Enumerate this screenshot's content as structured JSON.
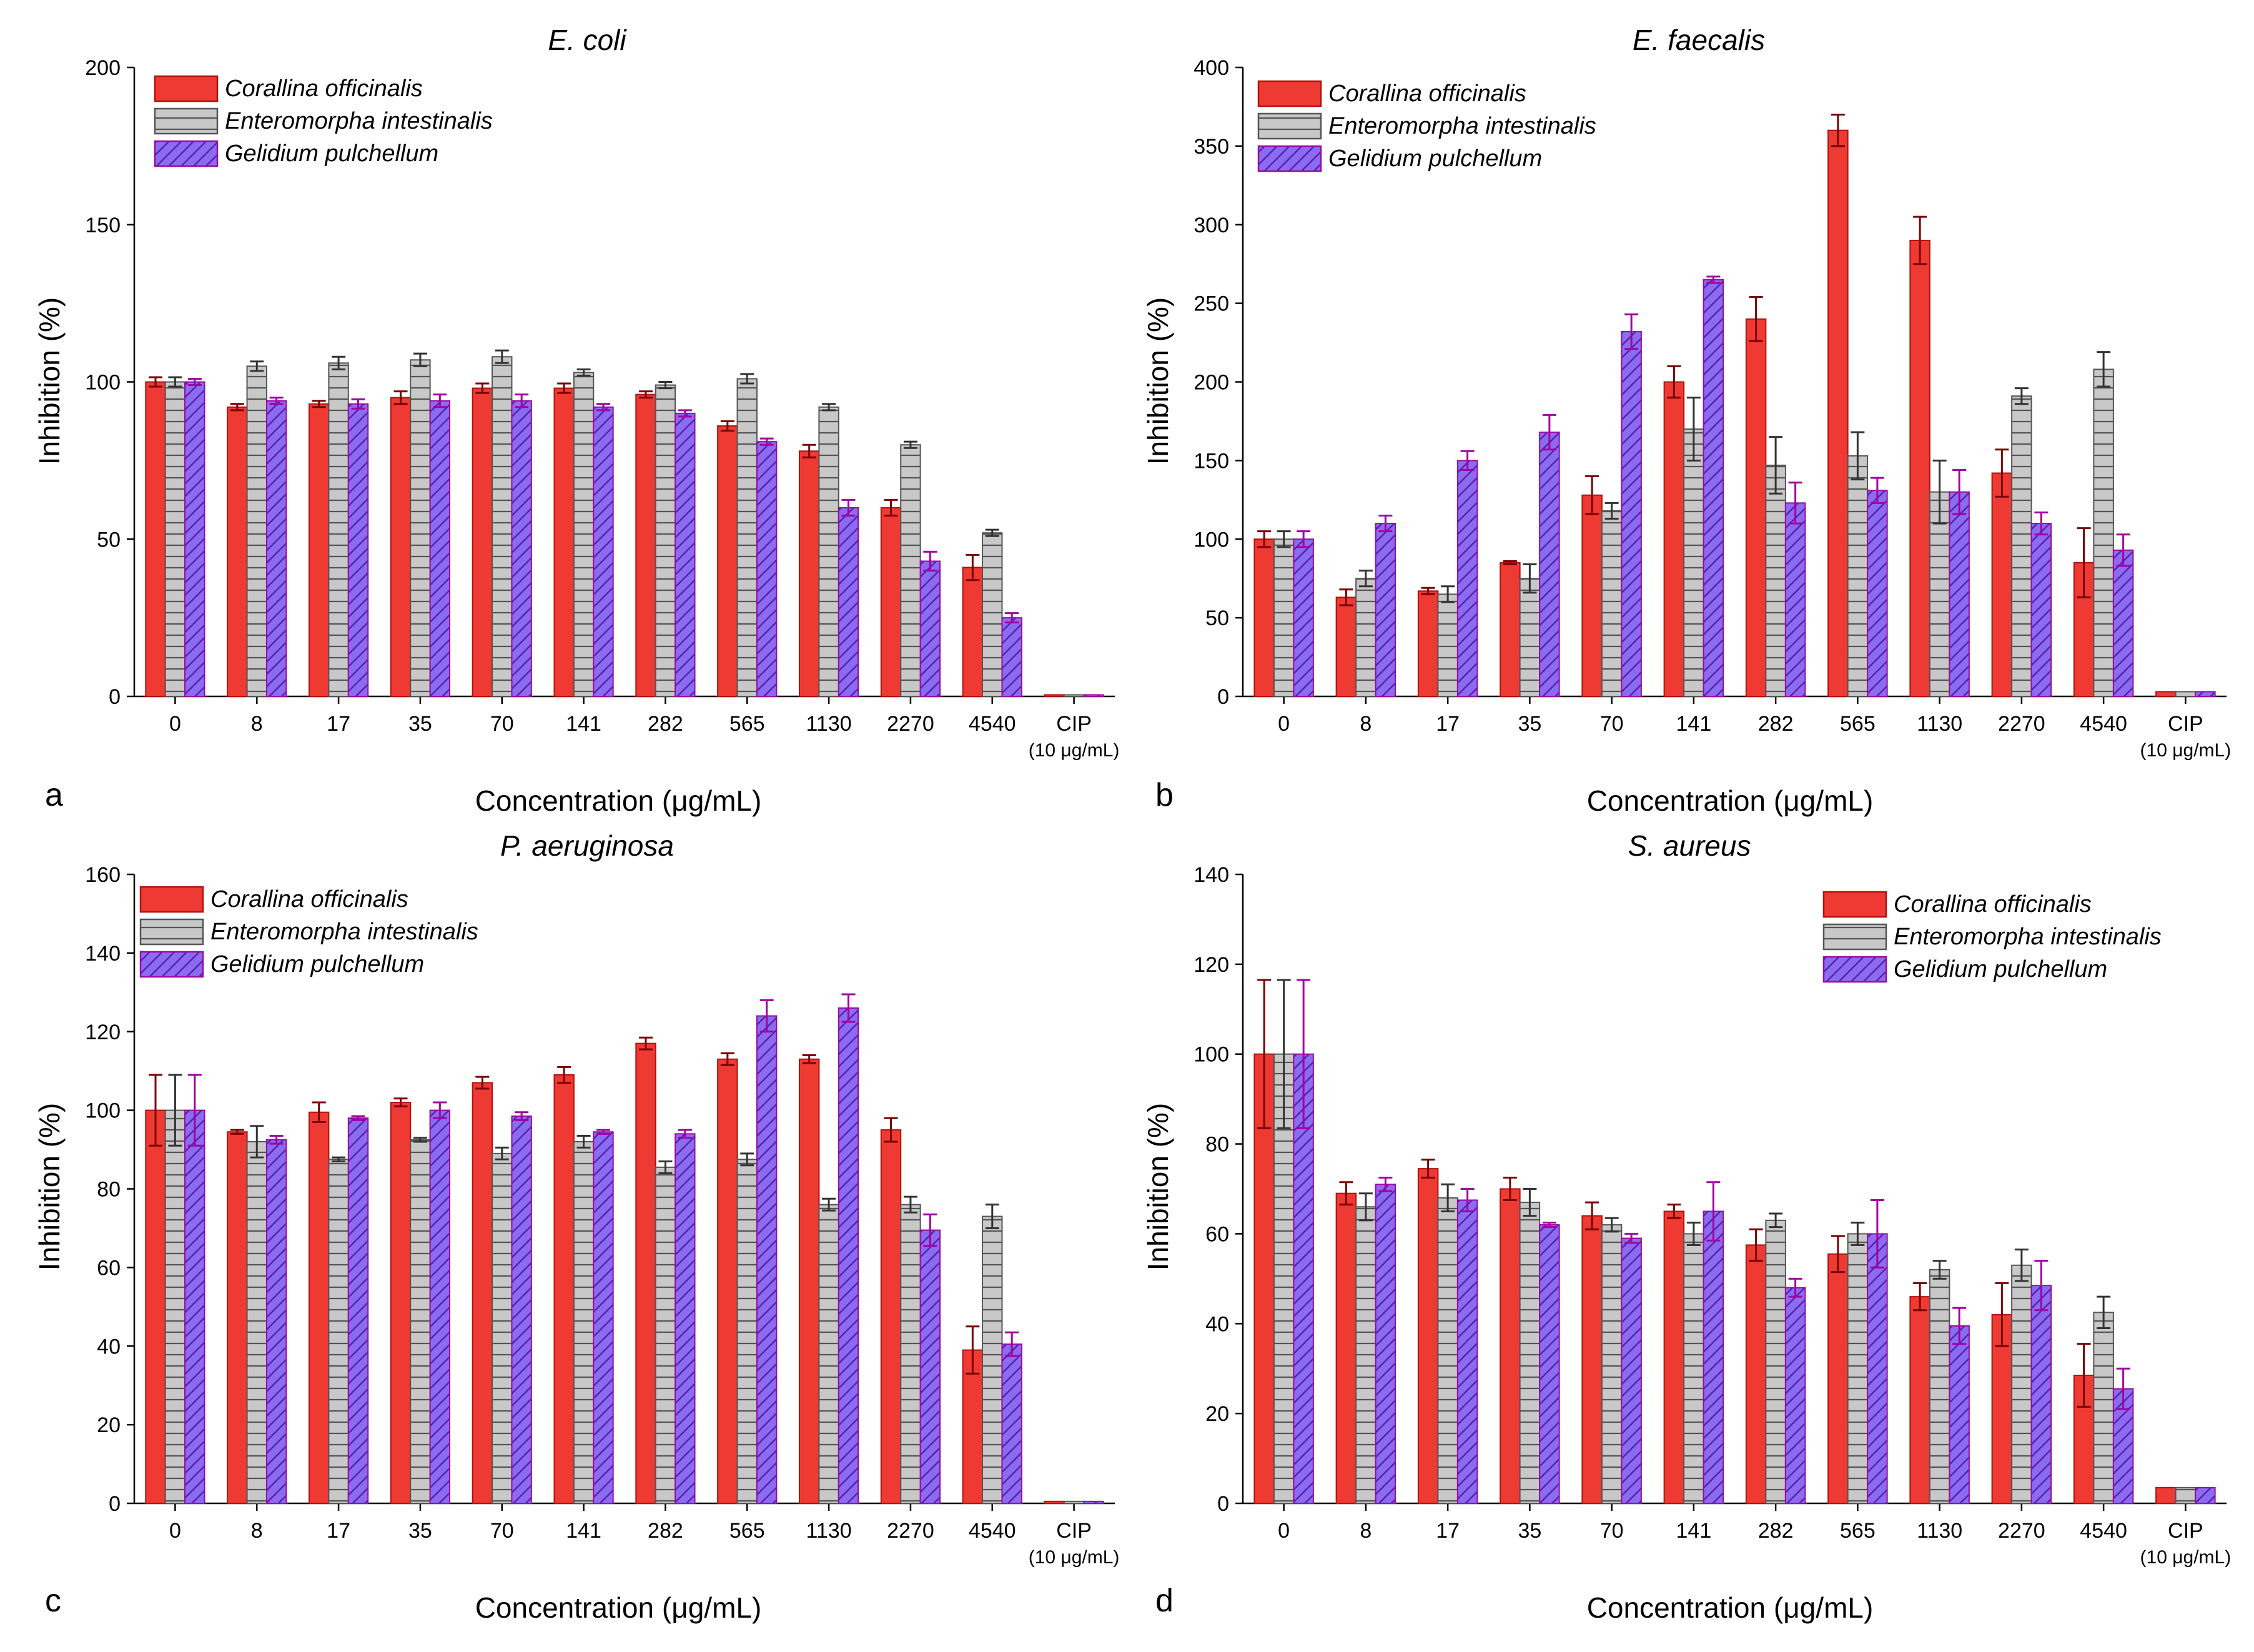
{
  "figure": {
    "panel_letters": [
      "a",
      "b",
      "c",
      "d"
    ]
  },
  "colors": {
    "series": [
      "#ee3a33",
      "#c8c8c8",
      "#8a6cf0"
    ],
    "series_stroke": [
      "#b0120d",
      "#555555",
      "#9a0aa0"
    ],
    "hatch_lines": [
      "#b0120d",
      "#555555",
      "#5a1fb0"
    ],
    "errorbars": [
      "#7a0000",
      "#333333",
      "#a000a0"
    ]
  },
  "chart_data": [
    {
      "type": "bar",
      "title": "E. coli",
      "xlabel": "Concentration (μg/mL)",
      "ylabel": "Inhibition (%)",
      "ylim": [
        0,
        200
      ],
      "yticks": [
        0,
        50,
        100,
        150,
        200
      ],
      "categories": [
        "0",
        "8",
        "17",
        "35",
        "70",
        "141",
        "282",
        "565",
        "1130",
        "2270",
        "4540",
        "CIP"
      ],
      "cip_note": "(10 μg/mL)",
      "legend_position": "top-left",
      "series": [
        {
          "name": "Corallina officinalis",
          "values": [
            100,
            92,
            93,
            95,
            98,
            98,
            96,
            86,
            78,
            60,
            41,
            0.5
          ],
          "errors": [
            1.5,
            1,
            1,
            2,
            1.5,
            1.5,
            1,
            1.5,
            2,
            2.5,
            4,
            0
          ]
        },
        {
          "name": "Enteromorpha intestinalis",
          "values": [
            100,
            105,
            106,
            107,
            108,
            103,
            99,
            101,
            92,
            80,
            52,
            0.5
          ],
          "errors": [
            1.5,
            1.5,
            2,
            2,
            2,
            1,
            1,
            1.5,
            1,
            1,
            1,
            0
          ]
        },
        {
          "name": "Gelidium pulchellum",
          "values": [
            100,
            94,
            93,
            94,
            94,
            92,
            90,
            81,
            60,
            43,
            25,
            0.5
          ],
          "errors": [
            1,
            1,
            1.5,
            2,
            2,
            1,
            1,
            1,
            2.5,
            3,
            1.5,
            0
          ]
        }
      ]
    },
    {
      "type": "bar",
      "title": "E. faecalis",
      "xlabel": "Concentration (μg/mL)",
      "ylabel": "Inhibition (%)",
      "ylim": [
        0,
        400
      ],
      "yticks": [
        0,
        50,
        100,
        150,
        200,
        250,
        300,
        350,
        400
      ],
      "categories": [
        "0",
        "8",
        "17",
        "35",
        "70",
        "141",
        "282",
        "565",
        "1130",
        "2270",
        "4540",
        "CIP"
      ],
      "cip_note": "(10 μg/mL)",
      "legend_position": "top-left",
      "series": [
        {
          "name": "Corallina officinalis",
          "values": [
            100,
            63,
            67,
            85,
            128,
            200,
            240,
            360,
            290,
            142,
            85,
            3
          ],
          "errors": [
            5,
            5,
            2,
            1,
            12,
            10,
            14,
            10,
            15,
            15,
            22,
            0
          ]
        },
        {
          "name": "Enteromorpha intestinalis",
          "values": [
            100,
            75,
            65,
            75,
            118,
            170,
            147,
            153,
            130,
            191,
            208,
            3
          ],
          "errors": [
            5,
            5,
            5,
            9,
            5,
            20,
            18,
            15,
            20,
            5,
            11,
            0
          ]
        },
        {
          "name": "Gelidium pulchellum",
          "values": [
            100,
            110,
            150,
            168,
            232,
            265,
            123,
            131,
            130,
            110,
            93,
            3
          ],
          "errors": [
            5,
            5,
            6,
            11,
            11,
            2,
            13,
            8,
            14,
            7,
            10,
            0
          ]
        }
      ]
    },
    {
      "type": "bar",
      "title": "P. aeruginosa",
      "xlabel": "Concentration (μg/mL)",
      "ylabel": "Inhibition (%)",
      "ylim": [
        0,
        160
      ],
      "yticks": [
        0,
        20,
        40,
        60,
        80,
        100,
        120,
        140,
        160
      ],
      "categories": [
        "0",
        "8",
        "17",
        "35",
        "70",
        "141",
        "282",
        "565",
        "1130",
        "2270",
        "4540",
        "CIP"
      ],
      "cip_note": "(10 μg/mL)",
      "legend_position": "top-left",
      "series": [
        {
          "name": "Corallina officinalis",
          "values": [
            100,
            94.5,
            99.5,
            102,
            107,
            109,
            117,
            113,
            113,
            95,
            39,
            0.5
          ],
          "errors": [
            9,
            0.5,
            2.5,
            1,
            1.5,
            2,
            1.5,
            1.5,
            1,
            3,
            6,
            0
          ]
        },
        {
          "name": "Enteromorpha intestinalis",
          "values": [
            100,
            92,
            87.5,
            92.5,
            89,
            92,
            85.5,
            87.5,
            76,
            76,
            73,
            0.5
          ],
          "errors": [
            9,
            4,
            0.5,
            0.5,
            1.5,
            1.5,
            1.5,
            1.5,
            1.5,
            2,
            3,
            0
          ]
        },
        {
          "name": "Gelidium pulchellum",
          "values": [
            100,
            92.5,
            98,
            100,
            98.5,
            94.5,
            94,
            124,
            126,
            69.5,
            40.5,
            0.5
          ],
          "errors": [
            9,
            1,
            0.5,
            2,
            1,
            0.5,
            1,
            4,
            3.5,
            4,
            3,
            0
          ]
        }
      ]
    },
    {
      "type": "bar",
      "title": "S. aureus",
      "xlabel": "Concentration (μg/mL)",
      "ylabel": "Inhibition (%)",
      "ylim": [
        0,
        140
      ],
      "yticks": [
        0,
        20,
        40,
        60,
        80,
        100,
        120,
        140
      ],
      "categories": [
        "0",
        "8",
        "17",
        "35",
        "70",
        "141",
        "282",
        "565",
        "1130",
        "2270",
        "4540",
        "CIP"
      ],
      "cip_note": "(10 μg/mL)",
      "legend_position": "top-right",
      "series": [
        {
          "name": "Corallina officinalis",
          "values": [
            100,
            69,
            74.5,
            70,
            64,
            65,
            57.5,
            55.5,
            46,
            42,
            28.5,
            3.5
          ],
          "errors": [
            16.5,
            2.5,
            2,
            2.5,
            3,
            1.5,
            3.5,
            4,
            3,
            7,
            7,
            0
          ]
        },
        {
          "name": "Enteromorpha intestinalis",
          "values": [
            100,
            66,
            68,
            67,
            62,
            60,
            63,
            60,
            52,
            53,
            42.5,
            3.5
          ],
          "errors": [
            16.5,
            3,
            3,
            3,
            1.5,
            2.5,
            1.5,
            2.5,
            2,
            3.5,
            3.5,
            0
          ]
        },
        {
          "name": "Gelidium pulchellum",
          "values": [
            100,
            71,
            67.5,
            62,
            59,
            65,
            48,
            60,
            39.5,
            48.5,
            25.5,
            3.5
          ],
          "errors": [
            16.5,
            1.5,
            2.5,
            0.5,
            1,
            6.5,
            2,
            7.5,
            4,
            5.5,
            4.5,
            0
          ]
        }
      ]
    }
  ]
}
